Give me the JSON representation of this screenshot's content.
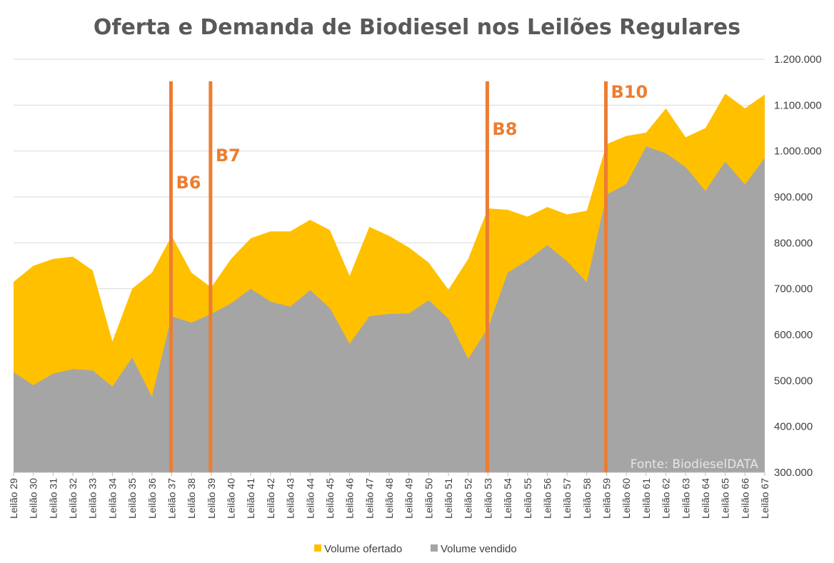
{
  "chart_data": {
    "type": "area",
    "title": "Oferta e Demanda de Biodiesel nos Leilões Regulares",
    "source": "Fonte: BiodieselDATA",
    "categories": [
      "Leilão 29",
      "Leilão 30",
      "Leilão 31",
      "Leilão 32",
      "Leilão 33",
      "Leilão 34",
      "Leilão 35",
      "Leilão 36",
      "Leilão 37",
      "Leilão 38",
      "Leilão 39",
      "Leilão 40",
      "Leilão 41",
      "Leilão 42",
      "Leilão 43",
      "Leilão 44",
      "Leilão 45",
      "Leilão 46",
      "Leilão 47",
      "Leilão 48",
      "Leilão 49",
      "Leilão 50",
      "Leilão 51",
      "Leilão 52",
      "Leilão 53",
      "Leilão 54",
      "Leilão 55",
      "Leilão 56",
      "Leilão 57",
      "Leilão 58",
      "Leilão 59",
      "Leilão 60",
      "Leilão 61",
      "Leilão 62",
      "Leilão 63",
      "Leilão 64",
      "Leilão 65",
      "Leilão 66",
      "Leilão 67"
    ],
    "series": [
      {
        "name": "Volume ofertado",
        "color": "#FFC000",
        "values": [
          715000,
          750000,
          765000,
          770000,
          740000,
          585000,
          700000,
          735000,
          815000,
          735000,
          703000,
          765000,
          810000,
          825000,
          825000,
          850000,
          828000,
          728000,
          835000,
          815000,
          790000,
          757000,
          698000,
          765000,
          875000,
          872000,
          857000,
          878000,
          862000,
          870000,
          1015000,
          1033000,
          1040000,
          1093000,
          1030000,
          1050000,
          1125000,
          1093000,
          1123000
        ]
      },
      {
        "name": "Volume vendido",
        "color": "#A5A5A5",
        "values": [
          518000,
          490000,
          515000,
          525000,
          522000,
          487000,
          550000,
          465000,
          640000,
          626000,
          645000,
          668000,
          700000,
          672000,
          661000,
          697000,
          658000,
          580000,
          640000,
          645000,
          646000,
          675000,
          635000,
          547000,
          615000,
          735000,
          762000,
          795000,
          760000,
          714000,
          905000,
          928000,
          1010000,
          995000,
          965000,
          913000,
          977000,
          927000,
          985000
        ]
      }
    ],
    "ylim": [
      300000,
      1200000
    ],
    "yticks": [
      "1.200.000",
      "1.100.000",
      "1.000.000",
      "900.000",
      "800.000",
      "700.000",
      "600.000",
      "500.000",
      "400.000",
      "300.000"
    ],
    "ytick_values": [
      1200000,
      1100000,
      1000000,
      900000,
      800000,
      700000,
      600000,
      500000,
      400000,
      300000
    ],
    "markers": [
      {
        "label": "B6",
        "category_index": 8,
        "label_value": 1000000,
        "label_dy": 0.35
      },
      {
        "label": "B7",
        "category_index": 10,
        "label_value": 1000000,
        "label_dy": 0.35
      },
      {
        "label": "B8",
        "category_index": 24,
        "label_value": 1000000,
        "label_dy": 0.35
      },
      {
        "label": "B10",
        "category_index": 30,
        "label_value": 1000000,
        "label_dy": 0.35
      }
    ],
    "marker_color": "#ED7D31",
    "legend_position": "bottom",
    "grid": true,
    "y_axis_side": "right"
  }
}
